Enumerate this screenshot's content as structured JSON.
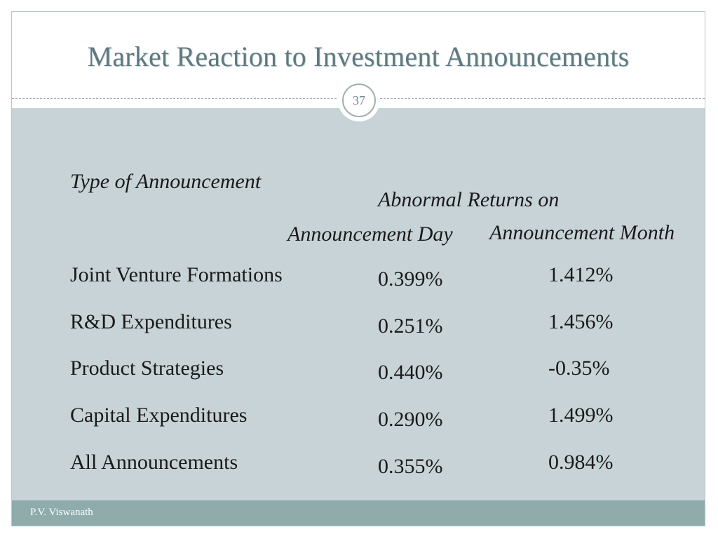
{
  "slide": {
    "title": "Market Reaction to Investment Announcements",
    "page_number": "37",
    "footer": "P.V. Viswanath"
  },
  "table": {
    "header_type": "Type of Announcement",
    "header_group": "Abnormal Returns on",
    "header_day": "Announcement Day",
    "header_month": "Announcement Month",
    "rows": [
      {
        "type": "Joint Venture Formations",
        "day": "0.399%",
        "month": "1.412%"
      },
      {
        "type": "R&D Expenditures",
        "day": "0.251%",
        "month": "1.456%"
      },
      {
        "type": "Product Strategies",
        "day": "0.440%",
        "month": "-0.35%"
      },
      {
        "type": "Capital Expenditures",
        "day": "0.290%",
        "month": "1.499%"
      },
      {
        "type": "All Announcements",
        "day": "0.355%",
        "month": "0.984%"
      }
    ]
  },
  "colors": {
    "title": "#5d7a80",
    "panel": "#c8d3d7",
    "footer": "#8fabac"
  }
}
